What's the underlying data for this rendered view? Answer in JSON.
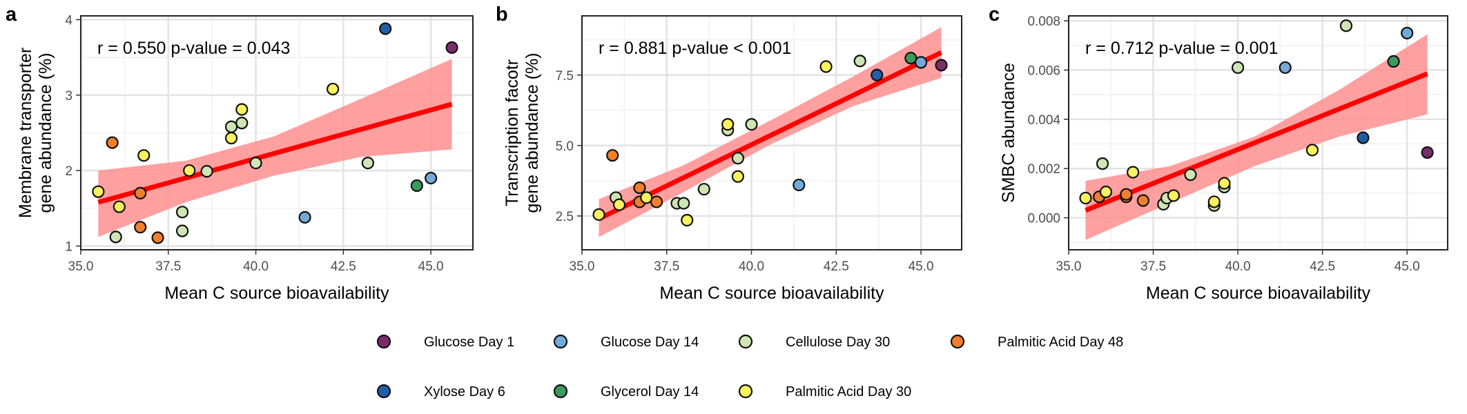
{
  "colors": {
    "Glucose Day 1": "#7b2d6b",
    "Glucose Day 14": "#74a9d8",
    "Cellulose Day 30": "#cfe5b3",
    "Palmitic Acid Day 48": "#f07f2d",
    "Xylose Day 6": "#1f5fa6",
    "Glycerol Day 14": "#3c9a5c",
    "Palmitic Acid Day 30": "#fbf25e",
    "fit_line": "#ff0000",
    "ci_band": "#ff8f8f"
  },
  "legend": [
    "Glucose Day 1",
    "Glucose Day 14",
    "Cellulose Day 30",
    "Palmitic Acid Day 48",
    "Xylose Day 6",
    "Glycerol Day 14",
    "Palmitic Acid Day 30"
  ],
  "chart_data": [
    {
      "type": "scatter",
      "panel": "a",
      "stat": "r = 0.550  p-value = 0.043",
      "xlabel": "Mean C source bioavailability",
      "ylabel": [
        "Membrane transporter",
        "gene abundance (%)"
      ],
      "xlim": [
        35.0,
        46.2
      ],
      "ylim": [
        0.95,
        4.05
      ],
      "xticks": [
        35.0,
        37.5,
        40.0,
        42.5,
        45.0
      ],
      "xtick_labels": [
        "35.0",
        "37.5",
        "40.0",
        "42.5",
        "45.0"
      ],
      "yticks": [
        1,
        2,
        3,
        4
      ],
      "ytick_labels": [
        "1",
        "2",
        "3",
        "4"
      ],
      "fit": {
        "x0": 35.5,
        "y0": 1.58,
        "x1": 45.6,
        "y1": 2.88
      },
      "band": {
        "upper": [
          [
            35.5,
            2.0
          ],
          [
            38.0,
            2.13
          ],
          [
            40.5,
            2.45
          ],
          [
            43.0,
            2.95
          ],
          [
            45.6,
            3.48
          ]
        ],
        "lower": [
          [
            35.5,
            1.12
          ],
          [
            38.0,
            1.58
          ],
          [
            40.5,
            1.93
          ],
          [
            43.0,
            2.18
          ],
          [
            45.6,
            2.28
          ]
        ]
      },
      "points": [
        {
          "x": 35.5,
          "y": 1.72,
          "group": "Palmitic Acid Day 30"
        },
        {
          "x": 35.9,
          "y": 2.37,
          "group": "Palmitic Acid Day 48"
        },
        {
          "x": 36.0,
          "y": 1.12,
          "group": "Cellulose Day 30"
        },
        {
          "x": 36.1,
          "y": 1.52,
          "group": "Palmitic Acid Day 30"
        },
        {
          "x": 36.7,
          "y": 1.25,
          "group": "Palmitic Acid Day 48"
        },
        {
          "x": 36.7,
          "y": 1.7,
          "group": "Palmitic Acid Day 48"
        },
        {
          "x": 36.8,
          "y": 2.2,
          "group": "Palmitic Acid Day 30"
        },
        {
          "x": 37.2,
          "y": 1.11,
          "group": "Palmitic Acid Day 48"
        },
        {
          "x": 37.9,
          "y": 1.2,
          "group": "Cellulose Day 30"
        },
        {
          "x": 37.9,
          "y": 1.45,
          "group": "Cellulose Day 30"
        },
        {
          "x": 38.1,
          "y": 2.0,
          "group": "Palmitic Acid Day 30"
        },
        {
          "x": 38.6,
          "y": 1.99,
          "group": "Cellulose Day 30"
        },
        {
          "x": 39.3,
          "y": 2.58,
          "group": "Cellulose Day 30"
        },
        {
          "x": 39.3,
          "y": 2.43,
          "group": "Palmitic Acid Day 30"
        },
        {
          "x": 39.6,
          "y": 2.81,
          "group": "Palmitic Acid Day 30"
        },
        {
          "x": 39.6,
          "y": 2.63,
          "group": "Cellulose Day 30"
        },
        {
          "x": 40.0,
          "y": 2.1,
          "group": "Cellulose Day 30"
        },
        {
          "x": 41.4,
          "y": 1.38,
          "group": "Glucose Day 14"
        },
        {
          "x": 42.2,
          "y": 3.08,
          "group": "Palmitic Acid Day 30"
        },
        {
          "x": 43.2,
          "y": 2.1,
          "group": "Cellulose Day 30"
        },
        {
          "x": 43.7,
          "y": 3.88,
          "group": "Xylose Day 6"
        },
        {
          "x": 44.6,
          "y": 1.8,
          "group": "Glycerol Day 14"
        },
        {
          "x": 45.0,
          "y": 1.9,
          "group": "Glucose Day 14"
        },
        {
          "x": 45.6,
          "y": 3.63,
          "group": "Glucose Day 1"
        }
      ]
    },
    {
      "type": "scatter",
      "panel": "b",
      "stat": "r = 0.881  p-value < 0.001",
      "xlabel": "Mean C source bioavailability",
      "ylabel": [
        "Transcription facotr",
        "gene abundance (%)"
      ],
      "xlim": [
        35.0,
        46.2
      ],
      "ylim": [
        1.3,
        9.6
      ],
      "xticks": [
        35.0,
        37.5,
        40.0,
        42.5,
        45.0
      ],
      "xtick_labels": [
        "35.0",
        "37.5",
        "40.0",
        "42.5",
        "45.0"
      ],
      "yticks": [
        2.5,
        5.0,
        7.5
      ],
      "ytick_labels": [
        "2.5",
        "5.0",
        "7.5"
      ],
      "fit": {
        "x0": 35.5,
        "y0": 2.4,
        "x1": 45.6,
        "y1": 8.3
      },
      "band": {
        "upper": [
          [
            35.5,
            3.1
          ],
          [
            38.0,
            4.3
          ],
          [
            40.5,
            5.85
          ],
          [
            43.0,
            7.45
          ],
          [
            45.6,
            9.2
          ]
        ],
        "lower": [
          [
            35.5,
            1.75
          ],
          [
            38.0,
            3.35
          ],
          [
            40.5,
            5.0
          ],
          [
            43.0,
            6.4
          ],
          [
            45.6,
            7.4
          ]
        ]
      },
      "points": [
        {
          "x": 35.5,
          "y": 2.55,
          "group": "Palmitic Acid Day 30"
        },
        {
          "x": 35.9,
          "y": 4.65,
          "group": "Palmitic Acid Day 48"
        },
        {
          "x": 36.0,
          "y": 3.15,
          "group": "Cellulose Day 30"
        },
        {
          "x": 36.1,
          "y": 2.9,
          "group": "Palmitic Acid Day 30"
        },
        {
          "x": 36.7,
          "y": 3.5,
          "group": "Palmitic Acid Day 48"
        },
        {
          "x": 36.7,
          "y": 3.0,
          "group": "Palmitic Acid Day 48"
        },
        {
          "x": 36.9,
          "y": 3.15,
          "group": "Palmitic Acid Day 30"
        },
        {
          "x": 37.2,
          "y": 3.0,
          "group": "Palmitic Acid Day 48"
        },
        {
          "x": 37.8,
          "y": 2.95,
          "group": "Cellulose Day 30"
        },
        {
          "x": 38.0,
          "y": 2.95,
          "group": "Cellulose Day 30"
        },
        {
          "x": 38.1,
          "y": 2.35,
          "group": "Palmitic Acid Day 30"
        },
        {
          "x": 38.6,
          "y": 3.45,
          "group": "Cellulose Day 30"
        },
        {
          "x": 39.3,
          "y": 5.55,
          "group": "Cellulose Day 30"
        },
        {
          "x": 39.3,
          "y": 5.75,
          "group": "Palmitic Acid Day 30"
        },
        {
          "x": 39.6,
          "y": 4.55,
          "group": "Cellulose Day 30"
        },
        {
          "x": 39.6,
          "y": 3.9,
          "group": "Palmitic Acid Day 30"
        },
        {
          "x": 40.0,
          "y": 5.75,
          "group": "Cellulose Day 30"
        },
        {
          "x": 41.4,
          "y": 3.6,
          "group": "Glucose Day 14"
        },
        {
          "x": 42.2,
          "y": 7.8,
          "group": "Palmitic Acid Day 30"
        },
        {
          "x": 43.2,
          "y": 8.0,
          "group": "Cellulose Day 30"
        },
        {
          "x": 43.7,
          "y": 7.5,
          "group": "Xylose Day 6"
        },
        {
          "x": 44.7,
          "y": 8.1,
          "group": "Glycerol Day 14"
        },
        {
          "x": 45.0,
          "y": 7.95,
          "group": "Glucose Day 14"
        },
        {
          "x": 45.6,
          "y": 7.85,
          "group": "Glucose Day 1"
        }
      ]
    },
    {
      "type": "scatter",
      "panel": "c",
      "stat": "r = 0.712  p-value = 0.001",
      "xlabel": "Mean C source bioavailability",
      "ylabel": [
        "SMBC abundance"
      ],
      "xlim": [
        35.0,
        46.2
      ],
      "ylim": [
        -0.0013,
        0.0082
      ],
      "xticks": [
        35.0,
        37.5,
        40.0,
        42.5,
        45.0
      ],
      "xtick_labels": [
        "35.0",
        "37.5",
        "40.0",
        "42.5",
        "45.0"
      ],
      "yticks": [
        0.0,
        0.002,
        0.004,
        0.006,
        0.008
      ],
      "ytick_labels": [
        "0.000",
        "0.002",
        "0.004",
        "0.006",
        "0.008"
      ],
      "fit": {
        "x0": 35.5,
        "y0": 0.0003,
        "x1": 45.6,
        "y1": 0.00585
      },
      "band": {
        "upper": [
          [
            35.5,
            0.0015
          ],
          [
            38.0,
            0.0021
          ],
          [
            40.5,
            0.0033
          ],
          [
            43.0,
            0.0052
          ],
          [
            45.6,
            0.00745
          ]
        ],
        "lower": [
          [
            35.5,
            -0.0009
          ],
          [
            38.0,
            0.0006
          ],
          [
            40.5,
            0.0021
          ],
          [
            43.0,
            0.0033
          ],
          [
            45.6,
            0.0042
          ]
        ]
      },
      "points": [
        {
          "x": 35.5,
          "y": 0.0008,
          "group": "Palmitic Acid Day 30"
        },
        {
          "x": 35.9,
          "y": 0.00085,
          "group": "Palmitic Acid Day 48"
        },
        {
          "x": 36.0,
          "y": 0.0022,
          "group": "Cellulose Day 30"
        },
        {
          "x": 36.1,
          "y": 0.00105,
          "group": "Palmitic Acid Day 30"
        },
        {
          "x": 36.7,
          "y": 0.00085,
          "group": "Palmitic Acid Day 48"
        },
        {
          "x": 36.7,
          "y": 0.00095,
          "group": "Palmitic Acid Day 48"
        },
        {
          "x": 36.9,
          "y": 0.00185,
          "group": "Palmitic Acid Day 30"
        },
        {
          "x": 37.2,
          "y": 0.0007,
          "group": "Palmitic Acid Day 48"
        },
        {
          "x": 37.8,
          "y": 0.00055,
          "group": "Cellulose Day 30"
        },
        {
          "x": 37.9,
          "y": 0.0008,
          "group": "Cellulose Day 30"
        },
        {
          "x": 38.1,
          "y": 0.0009,
          "group": "Palmitic Acid Day 30"
        },
        {
          "x": 38.6,
          "y": 0.00175,
          "group": "Cellulose Day 30"
        },
        {
          "x": 39.3,
          "y": 0.0005,
          "group": "Cellulose Day 30"
        },
        {
          "x": 39.3,
          "y": 0.00065,
          "group": "Palmitic Acid Day 30"
        },
        {
          "x": 39.6,
          "y": 0.00125,
          "group": "Cellulose Day 30"
        },
        {
          "x": 39.6,
          "y": 0.0014,
          "group": "Palmitic Acid Day 30"
        },
        {
          "x": 40.0,
          "y": 0.0061,
          "group": "Cellulose Day 30"
        },
        {
          "x": 41.4,
          "y": 0.0061,
          "group": "Glucose Day 14"
        },
        {
          "x": 42.2,
          "y": 0.00275,
          "group": "Palmitic Acid Day 30"
        },
        {
          "x": 43.2,
          "y": 0.0078,
          "group": "Cellulose Day 30"
        },
        {
          "x": 43.7,
          "y": 0.00325,
          "group": "Xylose Day 6"
        },
        {
          "x": 44.6,
          "y": 0.00635,
          "group": "Glycerol Day 14"
        },
        {
          "x": 45.0,
          "y": 0.0075,
          "group": "Glucose Day 14"
        },
        {
          "x": 45.6,
          "y": 0.00265,
          "group": "Glucose Day 1"
        }
      ]
    }
  ]
}
